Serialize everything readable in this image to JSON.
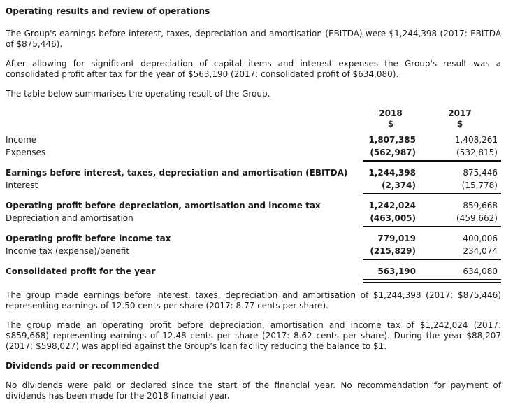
{
  "colors": {
    "text": "#1c1c1c",
    "rule": "#0a0a0a",
    "background": "#ffffff"
  },
  "document": {
    "heading1": "Operating results and review of operations",
    "para1": "The Group's earnings before interest, taxes, depreciation and amortisation (EBITDA) were $1,244,398 (2017: EBITDA of $875,446).",
    "para2": "After allowing for significant depreciation of capital items and interest expenses the Group's result was a consolidated profit after tax for the year of $563,190 (2017: consolidated profit of $634,080).",
    "para3": "The table below summarises the operating result of the Group.",
    "para4": "The group made earnings before interest, taxes, depreciation and amortisation of $1,244,398 (2017: $875,446) representing earnings of 12.50 cents per share (2017: 8.77 cents per share).",
    "para5": "The group made an operating profit before depreciation, amortisation and income tax of $1,242,024 (2017: $859,668) representing earnings of 12.48 cents per share (2017: 8.62 cents per share). During the year $88,207 (2017: $598,027) was applied against the Group’s loan facility reducing the balance to $1.",
    "heading2": "Dividends paid or recommended",
    "para6": "No dividends were paid or declared since the start of the financial year. No recommendation for payment of dividends has been made for the 2018 financial year."
  },
  "table": {
    "col_2018": "2018",
    "col_2017": "2017",
    "currency_2018": "$",
    "currency_2017": "$",
    "rows": [
      {
        "label": "Income",
        "v2018": "1,807,385",
        "v2017": "1,408,261"
      },
      {
        "label": "Expenses",
        "v2018": "(562,987)",
        "v2017": "(532,815)"
      },
      {
        "label": "Earnings before interest, taxes, depreciation and amortisation (EBITDA)",
        "v2018": "1,244,398",
        "v2017": "875,446"
      },
      {
        "label": "Interest",
        "v2018": "(2,374)",
        "v2017": "(15,778)"
      },
      {
        "label": "Operating profit before depreciation, amortisation and income tax",
        "v2018": "1,242,024",
        "v2017": "859,668"
      },
      {
        "label": "Depreciation and amortisation",
        "v2018": "(463,005)",
        "v2017": "(459,662)"
      },
      {
        "label": "Operating profit before income tax",
        "v2018": "779,019",
        "v2017": "400,006"
      },
      {
        "label": "Income tax (expense)/benefit",
        "v2018": "(215,829)",
        "v2017": "234,074"
      },
      {
        "label": "Consolidated profit for the year",
        "v2018": "563,190",
        "v2017": "634,080"
      }
    ]
  }
}
